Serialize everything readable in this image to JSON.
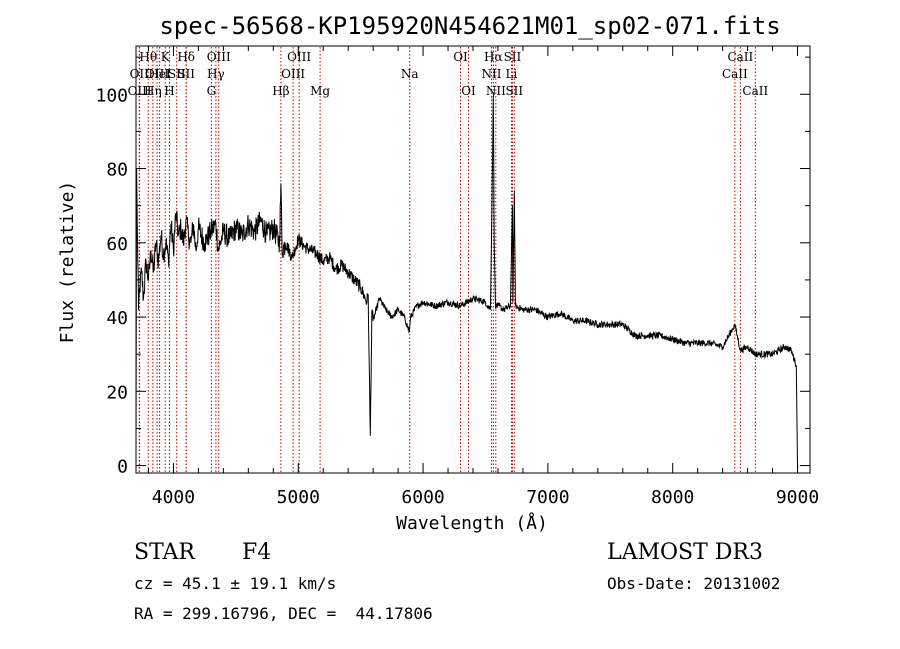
{
  "chart_data": {
    "type": "line",
    "title": "spec-56568-KP195920N454621M01_sp02-071.fits",
    "xlabel": "Wavelength (Å)",
    "ylabel": "Flux (relative)",
    "xlim": [
      3700,
      9100
    ],
    "ylim": [
      -2,
      113
    ],
    "xticks": [
      4000,
      5000,
      6000,
      7000,
      8000,
      9000
    ],
    "yticks": [
      0,
      20,
      40,
      60,
      80,
      100
    ],
    "grid": false,
    "series": [
      {
        "name": "spectrum",
        "x": [
          3700,
          3705,
          3712,
          3720,
          3730,
          3745,
          3760,
          3780,
          3800,
          3820,
          3840,
          3860,
          3880,
          3900,
          3920,
          3940,
          3960,
          3980,
          4000,
          4020,
          4040,
          4060,
          4080,
          4100,
          4120,
          4140,
          4160,
          4180,
          4200,
          4250,
          4300,
          4340,
          4360,
          4400,
          4450,
          4500,
          4550,
          4600,
          4650,
          4700,
          4750,
          4800,
          4850,
          4861,
          4870,
          4900,
          4950,
          5000,
          5050,
          5100,
          5150,
          5200,
          5250,
          5300,
          5350,
          5400,
          5450,
          5500,
          5550,
          5560,
          5577,
          5590,
          5600,
          5650,
          5700,
          5750,
          5800,
          5850,
          5890,
          5900,
          5950,
          6000,
          6100,
          6200,
          6300,
          6400,
          6500,
          6540,
          6555,
          6563,
          6570,
          6580,
          6600,
          6650,
          6700,
          6716,
          6720,
          6731,
          6740,
          6800,
          6900,
          7000,
          7100,
          7200,
          7300,
          7400,
          7500,
          7600,
          7700,
          7800,
          7900,
          8000,
          8100,
          8200,
          8300,
          8400,
          8498,
          8542,
          8600,
          8662,
          8700,
          8800,
          8900,
          8950,
          8990,
          9000,
          9005
        ],
        "y": [
          2,
          80,
          60,
          42,
          48,
          52,
          45,
          55,
          50,
          58,
          52,
          60,
          55,
          62,
          57,
          60,
          55,
          65,
          58,
          68,
          62,
          64,
          60,
          66,
          62,
          60,
          65,
          58,
          64,
          60,
          63,
          65,
          58,
          63,
          61,
          64,
          62,
          65,
          63,
          66,
          62,
          64,
          60,
          76,
          58,
          60,
          56,
          61,
          59,
          58,
          57,
          55,
          56,
          53,
          54,
          52,
          50,
          48,
          44,
          46,
          8,
          42,
          39,
          45,
          42,
          40,
          42,
          40,
          36,
          40,
          43,
          44,
          43,
          44,
          43,
          45,
          44,
          42,
          78,
          100,
          60,
          43,
          43,
          42,
          43,
          70,
          44,
          74,
          43,
          42,
          42,
          40,
          41,
          39,
          39,
          38,
          38,
          38,
          35,
          35,
          35,
          34,
          33,
          33,
          33,
          32,
          38,
          31,
          32,
          30,
          30,
          30,
          32,
          31,
          27,
          0,
          0
        ],
        "line_style": "solid",
        "color": "#000000"
      }
    ],
    "line_marks": [
      {
        "wavelength": 3726,
        "label": "OII",
        "row": 2
      },
      {
        "wavelength": 3729,
        "label": "OIII",
        "row": 3
      },
      {
        "wavelength": 3798,
        "label": "Hθ",
        "row": 1
      },
      {
        "wavelength": 3835,
        "label": "Hη",
        "row": 3
      },
      {
        "wavelength": 3869,
        "label": "OIII",
        "row": 2
      },
      {
        "wavelength": 3889,
        "label": "HeI",
        "row": 2
      },
      {
        "wavelength": 3934,
        "label": "K",
        "row": 1
      },
      {
        "wavelength": 3968,
        "label": "H",
        "row": 3
      },
      {
        "wavelength": 4026,
        "label": "SII",
        "row": 2
      },
      {
        "wavelength": 4102,
        "label": "Hδ",
        "row": 1
      },
      {
        "wavelength": 4102,
        "label": "SII",
        "row": 2
      },
      {
        "wavelength": 4304,
        "label": "G",
        "row": 3
      },
      {
        "wavelength": 4340,
        "label": "Hγ",
        "row": 2
      },
      {
        "wavelength": 4363,
        "label": "OIII",
        "row": 1
      },
      {
        "wavelength": 4861,
        "label": "Hβ",
        "row": 3
      },
      {
        "wavelength": 4959,
        "label": "OIII",
        "row": 2
      },
      {
        "wavelength": 5007,
        "label": "OIII",
        "row": 1
      },
      {
        "wavelength": 5175,
        "label": "Mg",
        "row": 3
      },
      {
        "wavelength": 5893,
        "label": "Na",
        "row": 2
      },
      {
        "wavelength": 6300,
        "label": "OI",
        "row": 1
      },
      {
        "wavelength": 6364,
        "label": "OI",
        "row": 3
      },
      {
        "wavelength": 6548,
        "label": "NII",
        "row": 2
      },
      {
        "wavelength": 6563,
        "label": "Hα",
        "row": 1
      },
      {
        "wavelength": 6583,
        "label": "NII",
        "row": 3
      },
      {
        "wavelength": 6708,
        "label": "Li",
        "row": 2
      },
      {
        "wavelength": 6716,
        "label": "SII",
        "row": 1
      },
      {
        "wavelength": 6731,
        "label": "SII",
        "row": 3
      },
      {
        "wavelength": 8498,
        "label": "CaII",
        "row": 2
      },
      {
        "wavelength": 8542,
        "label": "CaII",
        "row": 1
      },
      {
        "wavelength": 8662,
        "label": "CaII",
        "row": 3
      }
    ]
  },
  "info": {
    "class_label": "STAR",
    "subclass": "F4",
    "survey": "LAMOST DR3",
    "redshift_line": "cz = 45.1 ± 19.1 km/s",
    "obs_date": "Obs-Date: 20131002",
    "coords": "RA = 299.16796, DEC =  44.17806"
  },
  "colors": {
    "line_marker": "#c00000",
    "spectrum": "#000000",
    "axes": "#000000",
    "background": "#ffffff"
  }
}
